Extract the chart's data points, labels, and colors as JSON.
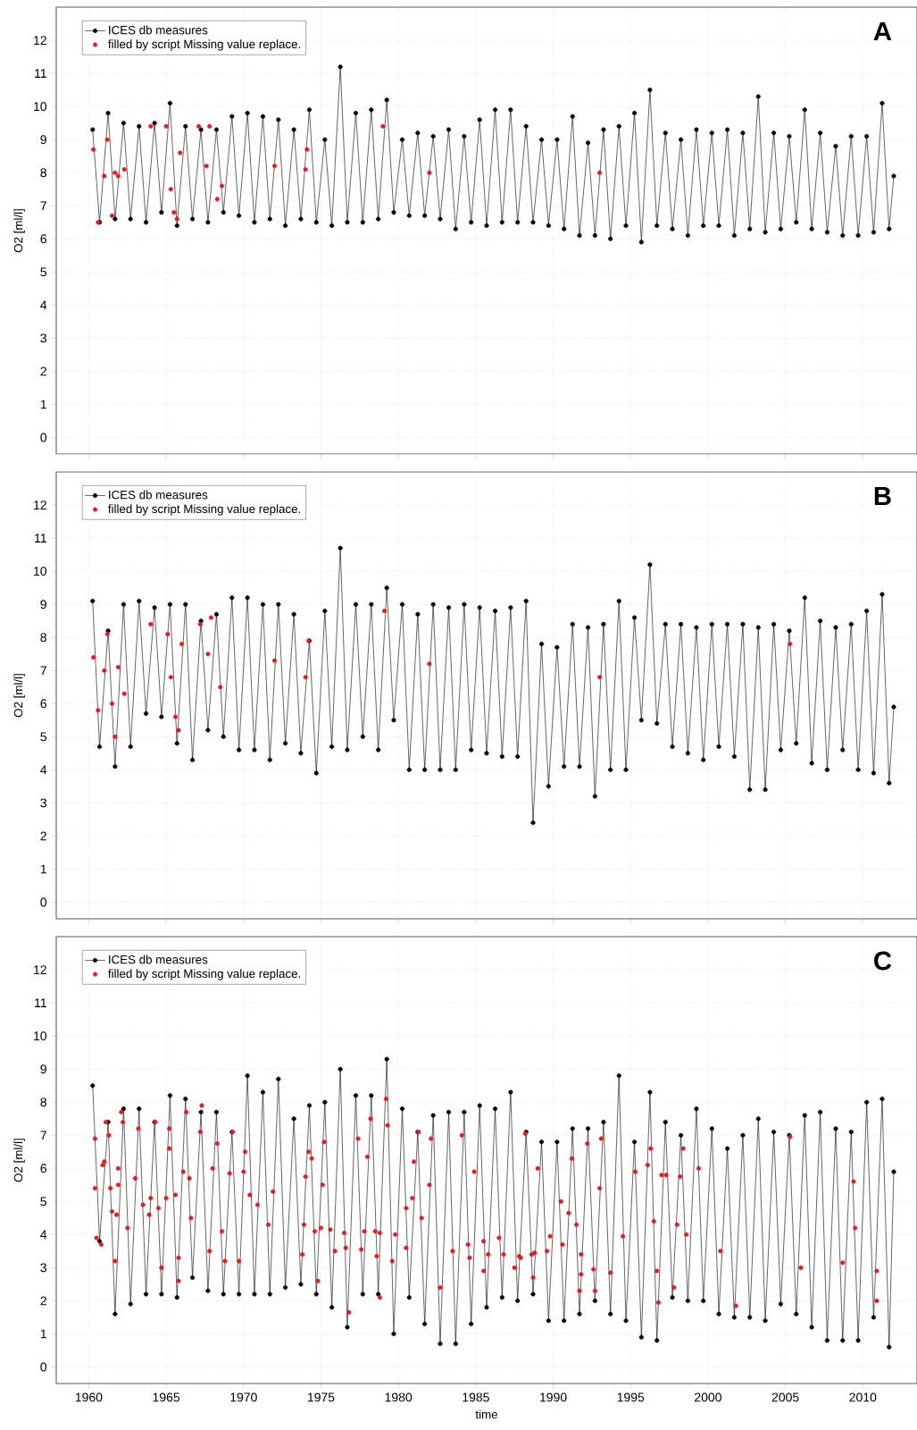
{
  "chart_data": [
    {
      "type": "line",
      "title": "A",
      "ylabel": "O2 [ml/l]",
      "xlim": [
        1957.9,
        2013.5
      ],
      "ylim": [
        -0.5,
        13
      ],
      "xticks": [
        1960,
        1965,
        1970,
        1975,
        1980,
        1985,
        1990,
        1995,
        2000,
        2005,
        2010
      ],
      "yticks": [
        0,
        1,
        2,
        3,
        4,
        5,
        6,
        7,
        8,
        9,
        10,
        11,
        12
      ],
      "grid": true,
      "legend": "top left",
      "marker": "circle",
      "tick_labels": "y",
      "series": [
        {
          "name": "ICES db measures",
          "type": "line",
          "color": "#000000",
          "x": [
            1960.25,
            1960.7,
            1961.25,
            1961.7,
            1962.25,
            1962.7,
            1963.25,
            1963.7,
            1964.25,
            1964.7,
            1965.25,
            1965.7,
            1966.25,
            1966.7,
            1967.25,
            1967.7,
            1968.25,
            1968.7,
            1969.25,
            1969.7,
            1970.25,
            1970.7,
            1971.25,
            1971.7,
            1972.25,
            1972.7,
            1973.25,
            1973.7,
            1974.25,
            1974.7,
            1975.25,
            1975.7,
            1976.25,
            1976.7,
            1977.25,
            1977.7,
            1978.25,
            1978.7,
            1979.25,
            1979.7,
            1980.25,
            1980.7,
            1981.25,
            1981.7,
            1982.25,
            1982.7,
            1983.25,
            1983.7,
            1984.25,
            1984.7,
            1985.25,
            1985.7,
            1986.25,
            1986.7,
            1987.25,
            1987.7,
            1988.25,
            1988.7,
            1989.25,
            1989.7,
            1990.25,
            1990.7,
            1991.25,
            1991.7,
            1992.25,
            1992.7,
            1993.25,
            1993.7,
            1994.25,
            1994.7,
            1995.25,
            1995.7,
            1996.25,
            1996.7,
            1997.25,
            1997.7,
            1998.25,
            1998.7,
            1999.25,
            1999.7,
            2000.25,
            2000.7,
            2001.25,
            2001.7,
            2002.25,
            2002.7,
            2003.25,
            2003.7,
            2004.25,
            2004.7,
            2005.25,
            2005.7,
            2006.25,
            2006.7,
            2007.25,
            2007.7,
            2008.25,
            2008.7,
            2009.25,
            2009.7,
            2010.25,
            2010.7,
            2011.25,
            2011.7,
            2012
          ],
          "values": [
            9.3,
            6.5,
            9.8,
            6.6,
            9.5,
            6.6,
            9.4,
            6.5,
            9.5,
            6.8,
            10.1,
            6.4,
            9.4,
            6.6,
            9.3,
            6.5,
            9.3,
            6.8,
            9.7,
            6.7,
            9.8,
            6.5,
            9.7,
            6.6,
            9.6,
            6.4,
            9.3,
            6.6,
            9.9,
            6.5,
            9.0,
            6.4,
            11.2,
            6.5,
            9.8,
            6.5,
            9.9,
            6.6,
            10.2,
            6.8,
            9.0,
            6.7,
            9.2,
            6.7,
            9.1,
            6.6,
            9.3,
            6.3,
            9.1,
            6.5,
            9.6,
            6.4,
            9.9,
            6.5,
            9.9,
            6.5,
            9.4,
            6.5,
            9.0,
            6.4,
            9.0,
            6.3,
            9.7,
            6.1,
            8.9,
            6.1,
            9.3,
            6.0,
            9.4,
            6.4,
            9.8,
            5.9,
            10.5,
            6.4,
            9.2,
            6.3,
            9.0,
            6.1,
            9.3,
            6.4,
            9.2,
            6.4,
            9.3,
            6.1,
            9.2,
            6.3,
            10.3,
            6.2,
            9.2,
            6.3,
            9.1,
            6.5,
            9.9,
            6.3,
            9.2,
            6.2,
            8.8,
            6.1,
            9.1,
            6.1,
            9.1,
            6.2,
            10.1,
            6.3,
            7.9
          ]
        },
        {
          "name": "filled by script Missing value replace.",
          "type": "scatter",
          "color": "#e8191f",
          "x": [
            1960.3,
            1960.6,
            1961.0,
            1961.2,
            1961.5,
            1961.7,
            1961.9,
            1962.3,
            1964.0,
            1965.0,
            1965.3,
            1965.5,
            1965.7,
            1965.9,
            1967.1,
            1967.6,
            1967.8,
            1968.3,
            1968.6,
            1972.0,
            1974.0,
            1974.1,
            1979.0,
            1982.0,
            1993.0
          ],
          "values": [
            8.7,
            6.5,
            7.9,
            9.0,
            6.7,
            8.0,
            7.9,
            8.1,
            9.4,
            9.4,
            7.5,
            6.8,
            6.6,
            8.6,
            9.4,
            8.2,
            9.4,
            7.2,
            7.6,
            8.2,
            8.1,
            8.7,
            9.4,
            8.0,
            8.0
          ]
        }
      ]
    },
    {
      "type": "line",
      "title": "B",
      "ylabel": "O2 [ml/l]",
      "xlim": [
        1957.9,
        2013.5
      ],
      "ylim": [
        -0.5,
        13
      ],
      "xticks": [
        1960,
        1965,
        1970,
        1975,
        1980,
        1985,
        1990,
        1995,
        2000,
        2005,
        2010
      ],
      "yticks": [
        0,
        1,
        2,
        3,
        4,
        5,
        6,
        7,
        8,
        9,
        10,
        11,
        12
      ],
      "grid": true,
      "legend": "top left",
      "marker": "circle",
      "tick_labels": "y",
      "series": [
        {
          "name": "ICES db measures",
          "type": "line",
          "color": "#000000",
          "x": [
            1960.25,
            1960.7,
            1961.25,
            1961.7,
            1962.25,
            1962.7,
            1963.25,
            1963.7,
            1964.25,
            1964.7,
            1965.25,
            1965.7,
            1966.25,
            1966.7,
            1967.25,
            1967.7,
            1968.25,
            1968.7,
            1969.25,
            1969.7,
            1970.25,
            1970.7,
            1971.25,
            1971.7,
            1972.25,
            1972.7,
            1973.25,
            1973.7,
            1974.25,
            1974.7,
            1975.25,
            1975.7,
            1976.25,
            1976.7,
            1977.25,
            1977.7,
            1978.25,
            1978.7,
            1979.25,
            1979.7,
            1980.25,
            1980.7,
            1981.25,
            1981.7,
            1982.25,
            1982.7,
            1983.25,
            1983.7,
            1984.25,
            1984.7,
            1985.25,
            1985.7,
            1986.25,
            1986.7,
            1987.25,
            1987.7,
            1988.25,
            1988.7,
            1989.25,
            1989.7,
            1990.25,
            1990.7,
            1991.25,
            1991.7,
            1992.25,
            1992.7,
            1993.25,
            1993.7,
            1994.25,
            1994.7,
            1995.25,
            1995.7,
            1996.25,
            1996.7,
            1997.25,
            1997.7,
            1998.25,
            1998.7,
            1999.25,
            1999.7,
            2000.25,
            2000.7,
            2001.25,
            2001.7,
            2002.25,
            2002.7,
            2003.25,
            2003.7,
            2004.25,
            2004.7,
            2005.25,
            2005.7,
            2006.25,
            2006.7,
            2007.25,
            2007.7,
            2008.25,
            2008.7,
            2009.25,
            2009.7,
            2010.25,
            2010.7,
            2011.25,
            2011.7,
            2012
          ],
          "values": [
            9.1,
            4.7,
            8.2,
            4.1,
            9.0,
            4.7,
            9.1,
            5.7,
            8.9,
            5.6,
            9.0,
            4.8,
            9.0,
            4.3,
            8.5,
            5.2,
            8.7,
            5.0,
            9.2,
            4.6,
            9.2,
            4.6,
            9.0,
            4.3,
            9.0,
            4.8,
            8.7,
            4.5,
            7.9,
            3.9,
            8.8,
            4.7,
            10.7,
            4.6,
            9.0,
            5.0,
            9.0,
            4.6,
            9.5,
            5.5,
            9.0,
            4.0,
            8.7,
            4.0,
            9.0,
            4.0,
            8.9,
            4.0,
            9.0,
            4.6,
            8.9,
            4.5,
            8.8,
            4.4,
            8.9,
            4.4,
            9.1,
            2.4,
            7.8,
            3.5,
            7.7,
            4.1,
            8.4,
            4.1,
            8.3,
            3.2,
            8.4,
            4.0,
            9.1,
            4.0,
            8.6,
            5.5,
            10.2,
            5.4,
            8.4,
            4.7,
            8.4,
            4.5,
            8.3,
            4.3,
            8.4,
            4.7,
            8.4,
            4.4,
            8.4,
            3.4,
            8.3,
            3.4,
            8.4,
            4.6,
            8.2,
            4.8,
            9.2,
            4.2,
            8.5,
            4.0,
            8.3,
            4.6,
            8.4,
            4.0,
            8.8,
            3.9,
            9.3,
            3.6,
            5.9
          ]
        },
        {
          "name": "filled by script Missing value replace.",
          "type": "scatter",
          "color": "#e8191f",
          "x": [
            1960.3,
            1960.6,
            1961.0,
            1961.2,
            1961.5,
            1961.7,
            1961.9,
            1962.3,
            1964.0,
            1965.1,
            1965.3,
            1965.6,
            1965.8,
            1966.0,
            1967.2,
            1967.7,
            1967.9,
            1968.5,
            1972.0,
            1974.0,
            1974.2,
            1979.1,
            1982.0,
            1993.0,
            2005.3
          ],
          "values": [
            7.4,
            5.8,
            7.0,
            8.1,
            6.0,
            5.0,
            7.1,
            6.3,
            8.4,
            8.1,
            6.8,
            5.6,
            5.2,
            7.8,
            8.4,
            7.5,
            8.6,
            6.5,
            7.3,
            6.8,
            7.9,
            8.8,
            7.2,
            6.8,
            7.8
          ]
        }
      ]
    },
    {
      "type": "line",
      "title": "C",
      "xlabel": "time",
      "ylabel": "O2 [ml/l]",
      "xlim": [
        1957.9,
        2013.5
      ],
      "ylim": [
        -0.5,
        13
      ],
      "xticks": [
        1960,
        1965,
        1970,
        1975,
        1980,
        1985,
        1990,
        1995,
        2000,
        2005,
        2010
      ],
      "yticks": [
        0,
        1,
        2,
        3,
        4,
        5,
        6,
        7,
        8,
        9,
        10,
        11,
        12
      ],
      "grid": true,
      "legend": "top left",
      "marker": "circle",
      "series": [
        {
          "name": "ICES db measures",
          "type": "line",
          "color": "#000000",
          "x": [
            1960.25,
            1960.7,
            1961.25,
            1961.7,
            1962.25,
            1962.7,
            1963.25,
            1963.7,
            1964.25,
            1964.7,
            1965.25,
            1965.7,
            1966.25,
            1966.7,
            1967.25,
            1967.7,
            1968.25,
            1968.7,
            1969.25,
            1969.7,
            1970.25,
            1970.7,
            1971.25,
            1971.7,
            1972.25,
            1972.7,
            1973.25,
            1973.7,
            1974.25,
            1974.7,
            1975.25,
            1975.7,
            1976.25,
            1976.7,
            1977.25,
            1977.7,
            1978.25,
            1978.7,
            1979.25,
            1979.7,
            1980.25,
            1980.7,
            1981.25,
            1981.7,
            1982.25,
            1982.7,
            1983.25,
            1983.7,
            1984.25,
            1984.7,
            1985.25,
            1985.7,
            1986.25,
            1986.7,
            1987.25,
            1987.7,
            1988.25,
            1988.7,
            1989.25,
            1989.7,
            1990.25,
            1990.7,
            1991.25,
            1991.7,
            1992.25,
            1992.7,
            1993.25,
            1993.7,
            1994.25,
            1994.7,
            1995.25,
            1995.7,
            1996.25,
            1996.7,
            1997.25,
            1997.7,
            1998.25,
            1998.7,
            1999.25,
            1999.7,
            2000.25,
            2000.7,
            2001.25,
            2001.7,
            2002.25,
            2002.7,
            2003.25,
            2003.7,
            2004.25,
            2004.7,
            2005.25,
            2005.7,
            2006.25,
            2006.7,
            2007.25,
            2007.7,
            2008.25,
            2008.7,
            2009.25,
            2009.7,
            2010.25,
            2010.7,
            2011.25,
            2011.7,
            2012
          ],
          "values": [
            8.5,
            3.8,
            7.4,
            1.6,
            7.8,
            1.9,
            7.8,
            2.2,
            7.4,
            2.2,
            8.2,
            2.1,
            8.1,
            2.7,
            7.7,
            2.3,
            7.7,
            2.2,
            7.1,
            2.2,
            8.8,
            2.2,
            8.3,
            2.2,
            8.7,
            2.4,
            7.5,
            2.5,
            7.9,
            2.2,
            8.0,
            1.8,
            9.0,
            1.2,
            8.2,
            2.2,
            8.2,
            2.2,
            9.3,
            1.0,
            7.8,
            2.1,
            7.1,
            1.3,
            7.6,
            0.7,
            7.7,
            0.7,
            7.7,
            1.3,
            7.9,
            1.8,
            7.8,
            2.1,
            8.3,
            2.0,
            7.1,
            2.2,
            6.8,
            1.4,
            6.8,
            1.4,
            7.2,
            1.6,
            7.2,
            2.0,
            7.4,
            1.6,
            8.8,
            1.4,
            6.8,
            0.9,
            8.3,
            0.8,
            7.4,
            2.1,
            7.0,
            2.0,
            7.8,
            2.0,
            7.2,
            1.6,
            6.6,
            1.5,
            7.0,
            1.5,
            7.5,
            1.4,
            7.1,
            1.9,
            7.0,
            1.6,
            7.6,
            1.2,
            7.7,
            0.8,
            7.2,
            0.8,
            7.1,
            0.8,
            8.0,
            1.5,
            8.1,
            0.6,
            5.9
          ]
        },
        {
          "name": "filled by script Missing value replace.",
          "type": "scatter",
          "color": "#e8191f",
          "x": [
            1960.4,
            1960.4,
            1960.5,
            1960.8,
            1960.9,
            1961.0,
            1961.1,
            1961.3,
            1961.4,
            1961.5,
            1961.8,
            1961.7,
            1961.9,
            1961.9,
            1962.1,
            1962.2,
            1962.5,
            1963.0,
            1963.2,
            1963.5,
            1963.9,
            1964.0,
            1964.3,
            1964.5,
            1964.7,
            1965.0,
            1965.2,
            1965.2,
            1965.6,
            1965.8,
            1965.8,
            1966.1,
            1966.3,
            1966.5,
            1966.6,
            1967.3,
            1967.2,
            1967.8,
            1968.0,
            1968.3,
            1968.6,
            1968.8,
            1969.1,
            1969.3,
            1969.7,
            1970.0,
            1970.1,
            1970.4,
            1970.9,
            1971.6,
            1971.9,
            1973.8,
            1973.9,
            1974.0,
            1974.2,
            1974.4,
            1974.6,
            1974.8,
            1975.0,
            1975.1,
            1975.2,
            1975.6,
            1975.9,
            1976.5,
            1976.6,
            1976.8,
            1977.4,
            1977.6,
            1977.8,
            1978.0,
            1978.2,
            1978.5,
            1978.6,
            1978.8,
            1978.8,
            1979.2,
            1979.3,
            1979.6,
            1979.8,
            1980.5,
            1980.5,
            1981.0,
            1980.9,
            1981.3,
            1981.5,
            1982.0,
            1982.1,
            1982.7,
            1983.5,
            1984.1,
            1984.5,
            1984.6,
            1984.9,
            1985.5,
            1985.5,
            1985.8,
            1986.5,
            1986.8,
            1987.5,
            1987.8,
            1987.9,
            1988.2,
            1988.6,
            1988.7,
            1988.8,
            1989.0,
            1989.6,
            1989.8,
            1990.5,
            1990.6,
            1991.0,
            1991.2,
            1991.5,
            1991.7,
            1991.8,
            1991.8,
            1992.2,
            1992.6,
            1992.7,
            1993.0,
            1993.1,
            1993.7,
            1994.5,
            1995.3,
            1996.1,
            1996.3,
            1996.5,
            1996.7,
            1996.8,
            1997.0,
            1997.3,
            1997.8,
            1998.0,
            1998.2,
            1998.4,
            1998.6,
            1999.4,
            2000.8,
            2001.8,
            2005.3,
            2006.0,
            2008.7,
            2009.4,
            2009.5,
            2010.9,
            2010.9
          ],
          "values": [
            6.9,
            5.4,
            3.9,
            3.7,
            6.1,
            6.2,
            7.4,
            7.0,
            5.4,
            4.7,
            4.6,
            3.2,
            5.5,
            6.0,
            7.7,
            7.4,
            4.2,
            5.7,
            7.2,
            4.9,
            4.6,
            5.1,
            7.4,
            4.8,
            3.0,
            5.1,
            7.2,
            6.6,
            5.2,
            2.6,
            3.3,
            5.9,
            7.7,
            5.7,
            4.5,
            7.9,
            7.1,
            3.5,
            6.0,
            6.75,
            4.1,
            3.2,
            5.85,
            7.1,
            3.2,
            5.9,
            6.5,
            5.2,
            4.9,
            4.3,
            5.3,
            3.4,
            4.3,
            5.75,
            6.5,
            6.3,
            4.1,
            2.6,
            4.2,
            5.5,
            6.8,
            4.15,
            3.5,
            4.05,
            3.6,
            1.65,
            6.9,
            3.55,
            4.1,
            6.35,
            7.5,
            4.1,
            3.35,
            2.1,
            4.05,
            8.1,
            7.3,
            3.2,
            4.0,
            4.8,
            3.6,
            6.2,
            5.1,
            7.1,
            4.5,
            5.5,
            6.9,
            2.4,
            3.5,
            7.0,
            3.7,
            3.3,
            5.9,
            3.8,
            2.9,
            3.4,
            3.9,
            3.4,
            3.0,
            3.35,
            3.3,
            7.05,
            3.4,
            2.7,
            3.45,
            6.0,
            3.5,
            3.95,
            5.0,
            3.7,
            4.65,
            6.3,
            4.3,
            2.3,
            2.8,
            3.4,
            6.75,
            2.95,
            2.3,
            5.4,
            6.9,
            2.85,
            3.95,
            5.9,
            6.1,
            6.6,
            4.4,
            2.9,
            1.95,
            5.8,
            5.8,
            2.4,
            4.3,
            5.75,
            6.6,
            4.0,
            6.0,
            3.5,
            1.85,
            6.95,
            3.0,
            3.15,
            5.6,
            4.2,
            2.9,
            2.0
          ]
        }
      ]
    }
  ]
}
